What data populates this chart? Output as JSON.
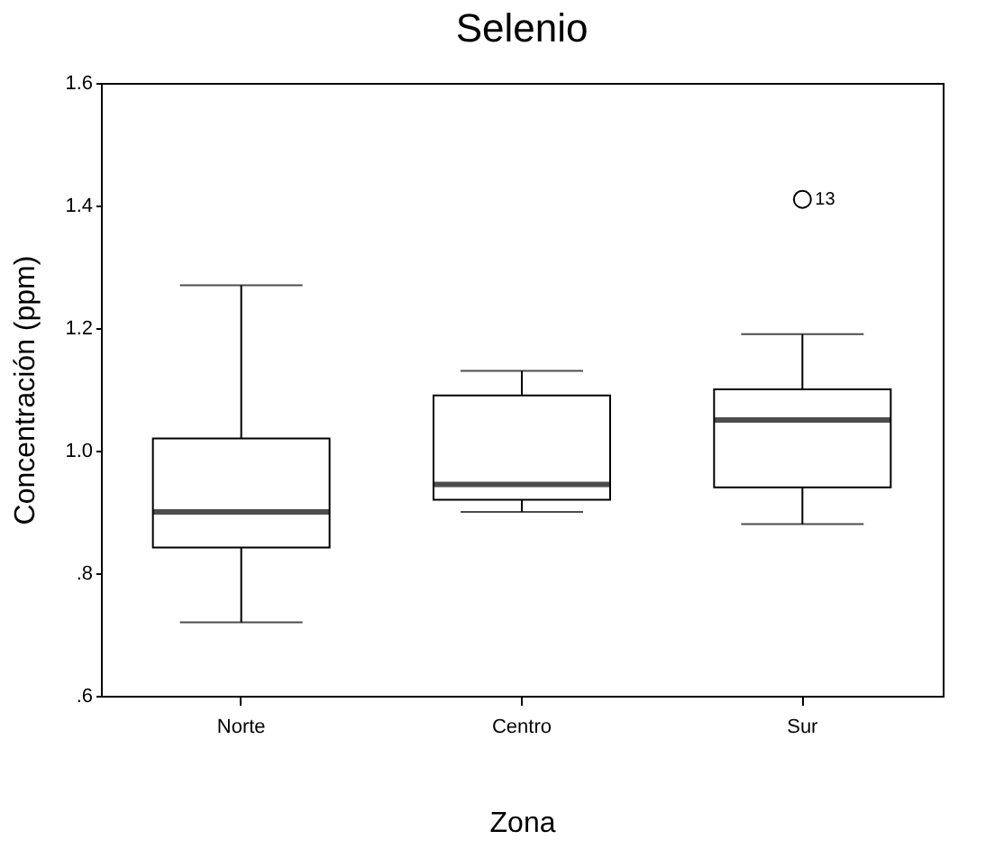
{
  "chart_data": {
    "type": "box",
    "title": "Selenio",
    "xlabel": "Zona",
    "ylabel": "Concentración (ppm)",
    "categories": [
      "Norte",
      "Centro",
      "Sur"
    ],
    "boxes": [
      {
        "low": 0.72,
        "q1": 0.842,
        "median": 0.9,
        "q3": 1.02,
        "high": 1.27
      },
      {
        "low": 0.9,
        "q1": 0.92,
        "median": 0.945,
        "q3": 1.09,
        "high": 1.13
      },
      {
        "low": 0.88,
        "q1": 0.94,
        "median": 1.05,
        "q3": 1.1,
        "high": 1.19,
        "outliers": [
          1.41
        ]
      }
    ],
    "ylim": [
      0.6,
      1.6
    ],
    "yticks": [
      {
        "value": 0.6,
        "label": ".6"
      },
      {
        "value": 0.8,
        "label": ".8"
      },
      {
        "value": 1.0,
        "label": "1.0"
      },
      1.2,
      1.4,
      1.6
    ],
    "annotations": [
      "13"
    ],
    "grid": false
  }
}
